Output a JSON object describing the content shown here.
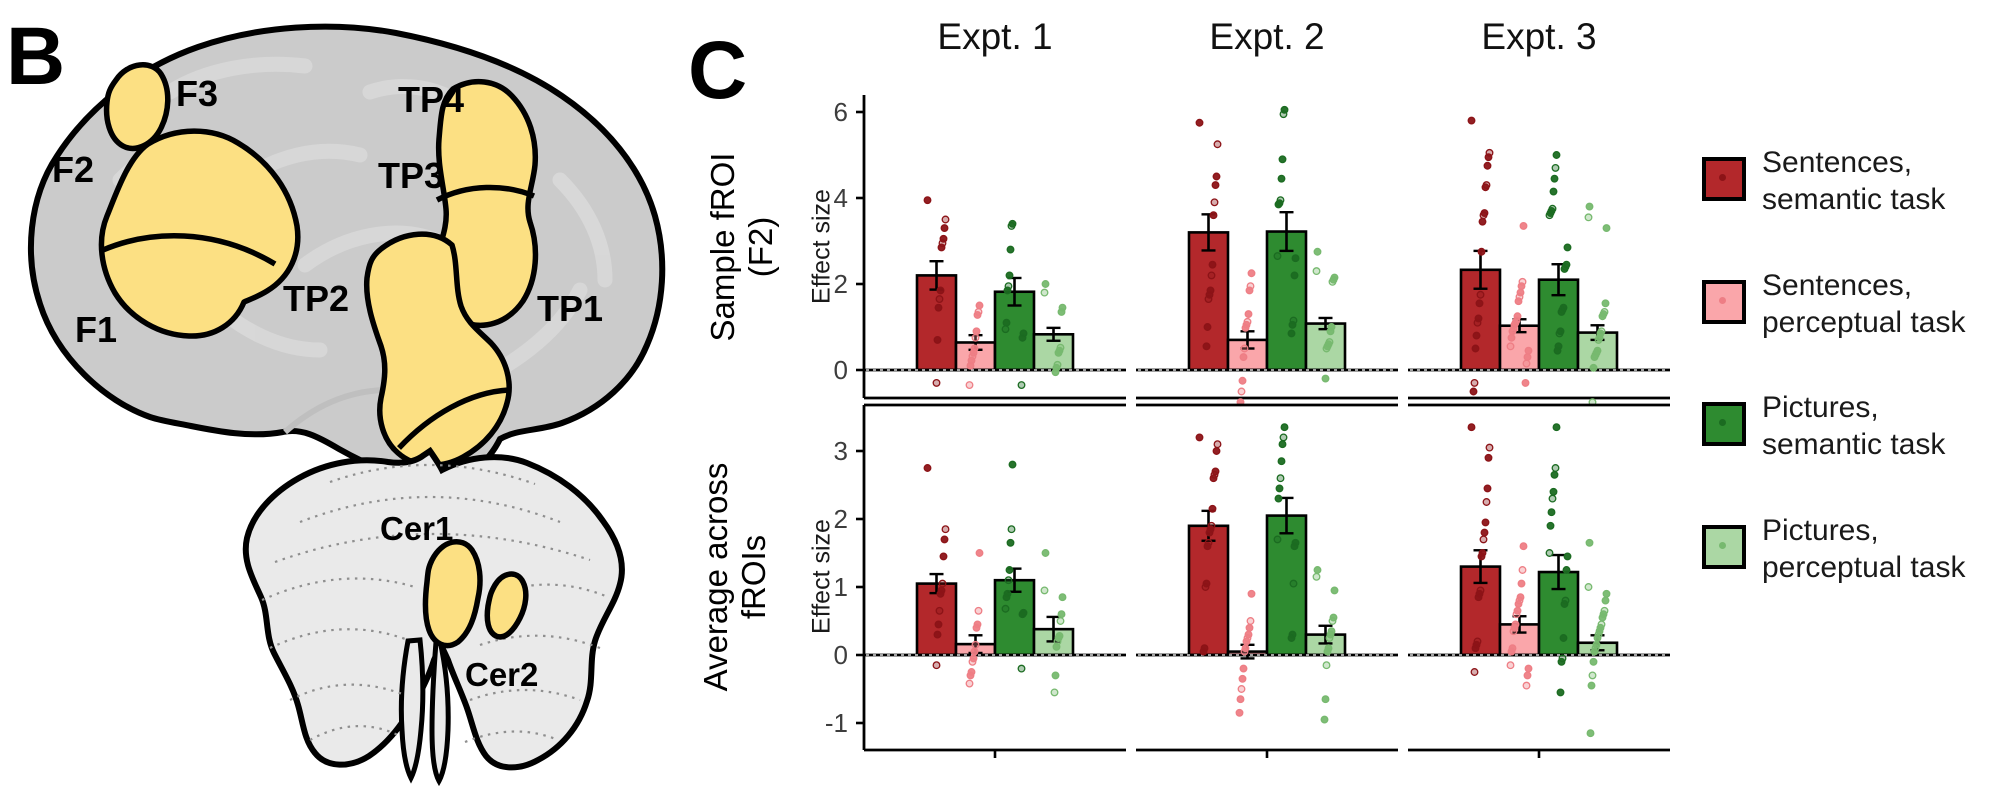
{
  "panel_b": {
    "label": "B",
    "colors": {
      "region_fill": "#FCE083",
      "cortex": "#CBCBCB",
      "cerebellum": "#EAEAEA"
    },
    "regions": [
      "F3",
      "TP4",
      "F2",
      "TP3",
      "TP2",
      "TP1",
      "F1"
    ],
    "cerebellum_regions": [
      "Cer1",
      "Cer2"
    ]
  },
  "panel_c": {
    "label": "C",
    "y_axis_label": "Effect size",
    "row_labels": [
      [
        "Sample fROI",
        "(F2)"
      ],
      [
        "Average across",
        "fROIs"
      ]
    ],
    "legend": [
      {
        "line1": "Sentences,",
        "line2": "semantic task",
        "key": "sentences-semantic",
        "color": "#B3282B",
        "point_color": "#8C1317"
      },
      {
        "line1": "Sentences,",
        "line2": "perceptual task",
        "key": "sentences-perceptual",
        "color": "#FAA6AA",
        "point_color": "#EE7E85"
      },
      {
        "line1": "Pictures,",
        "line2": "semantic task",
        "key": "pictures-semantic",
        "color": "#2E8B30",
        "point_color": "#1B6B21"
      },
      {
        "line1": "Pictures,",
        "line2": "perceptual task",
        "key": "pictures-perceptual",
        "color": "#ABD7A4",
        "point_color": "#77B96F"
      }
    ]
  },
  "chart_data": {
    "type": "bar",
    "columns": [
      "Expt. 1",
      "Expt. 2",
      "Expt. 3"
    ],
    "conditions": [
      "Sentences, semantic task",
      "Sentences, perceptual task",
      "Pictures, semantic task",
      "Pictures, perceptual task"
    ],
    "ylabel": "Effect size",
    "legend_position": "right",
    "rows": [
      {
        "label": "Sample fROI (F2)",
        "yticks": [
          0,
          2,
          4,
          6
        ],
        "ylim": [
          -0.65,
          6.4
        ],
        "panels": [
          {
            "values": [
              2.2,
              0.64,
              1.82,
              0.83
            ],
            "errors": [
              0.33,
              0.17,
              0.32,
              0.15
            ],
            "points": [
              [
                3.95,
                3.5,
                3.3,
                3.05,
                2.95,
                2.85,
                1.85,
                1.65,
                1.45,
                0.7,
                -0.3
              ],
              [
                1.5,
                1.35,
                1.28,
                0.9,
                0.75,
                0.5,
                0.4,
                0.32,
                0.22,
                0.1,
                -0.35
              ],
              [
                3.4,
                3.35,
                2.8,
                2.2,
                1.95,
                1.85,
                1.1,
                0.95,
                0.85,
                0.75,
                -0.35
              ],
              [
                2.0,
                1.8,
                1.45,
                1.35,
                0.52,
                0.45,
                0.4,
                0.12,
                0.05,
                -0.05
              ]
            ]
          },
          {
            "values": [
              3.2,
              0.7,
              3.22,
              1.08
            ],
            "errors": [
              0.42,
              0.2,
              0.45,
              0.13
            ],
            "points": [
              [
                5.75,
                5.25,
                4.5,
                4.3,
                3.9,
                3.6,
                2.45,
                2.2,
                1.85,
                1.75,
                1.65,
                1.0,
                0.55
              ],
              [
                2.25,
                1.95,
                1.85,
                1.3,
                1.12,
                1.05,
                0.98,
                0.5,
                0.3,
                -0.25,
                -0.5,
                -0.75
              ],
              [
                6.05,
                5.95,
                4.9,
                4.45,
                3.95,
                3.88,
                3.85,
                2.65,
                2.6,
                2.2,
                1.15,
                1.05,
                0.85
              ],
              [
                2.75,
                2.3,
                2.15,
                2.1,
                2.05,
                1.0,
                0.9,
                0.65,
                0.6,
                0.55,
                0.5,
                -0.2
              ]
            ]
          },
          {
            "values": [
              2.33,
              1.03,
              2.1,
              0.87
            ],
            "errors": [
              0.44,
              0.15,
              0.36,
              0.17
            ],
            "points": [
              [
                5.8,
                5.05,
                4.95,
                4.75,
                4.3,
                4.25,
                3.65,
                3.6,
                3.45,
                2.75,
                1.75,
                1.55,
                1.2,
                1.1,
                0.8,
                0.5,
                -0.3,
                -0.5
              ],
              [
                3.35,
                2.05,
                1.95,
                1.8,
                1.7,
                1.6,
                1.25,
                1.15,
                1.1,
                1.05,
                0.95,
                0.9,
                0.75,
                0.55,
                0.45,
                0.3,
                0.15,
                -0.3
              ],
              [
                5.0,
                4.7,
                4.45,
                4.15,
                3.75,
                3.7,
                3.65,
                3.6,
                2.85,
                2.45,
                2.4,
                2.35,
                1.45,
                1.4,
                1.35,
                0.9,
                0.85,
                0.55,
                0.45
              ],
              [
                3.8,
                3.55,
                3.3,
                1.55,
                1.35,
                1.3,
                1.25,
                0.9,
                0.85,
                0.75,
                0.7,
                0.45,
                0.4,
                0.35,
                0.3,
                0.05,
                -0.75
              ]
            ]
          }
        ]
      },
      {
        "label": "Average across fROIs",
        "yticks": [
          -1,
          0,
          1,
          2,
          3
        ],
        "ylim": [
          -1.4,
          3.68
        ],
        "panels": [
          {
            "values": [
              1.05,
              0.16,
              1.1,
              0.38
            ],
            "errors": [
              0.14,
              0.13,
              0.17,
              0.18
            ],
            "points": [
              [
                2.75,
                1.85,
                1.7,
                1.45,
                1.05,
                0.95,
                0.9,
                0.65,
                0.45,
                0.3,
                -0.15
              ],
              [
                1.5,
                0.65,
                0.45,
                0.4,
                0.15,
                0.05,
                -0.05,
                -0.1,
                -0.25,
                -0.3,
                -0.42
              ],
              [
                2.8,
                1.85,
                1.65,
                1.25,
                1.1,
                0.9,
                0.85,
                0.68,
                0.62,
                0.6,
                -0.2
              ],
              [
                1.5,
                0.95,
                0.85,
                0.6,
                0.5,
                0.28,
                0.25,
                0.2,
                0.12,
                -0.3,
                -0.55
              ]
            ]
          },
          {
            "values": [
              1.9,
              0.05,
              2.05,
              0.3
            ],
            "errors": [
              0.22,
              0.1,
              0.26,
              0.13
            ],
            "points": [
              [
                3.2,
                3.1,
                3.0,
                2.7,
                2.65,
                2.6,
                2.15,
                1.9,
                1.85,
                1.8,
                1.65,
                1.6,
                1.05,
                1.0,
                0.1,
                0.05
              ],
              [
                0.9,
                0.5,
                0.4,
                0.3,
                0.25,
                0.2,
                0.1,
                0.05,
                -0.2,
                -0.35,
                -0.5,
                -0.65,
                -0.85
              ],
              [
                3.35,
                3.2,
                3.1,
                2.85,
                2.6,
                2.45,
                2.3,
                1.7,
                1.65,
                1.6,
                1.05,
                0.3,
                0.25
              ],
              [
                1.25,
                1.15,
                0.95,
                0.55,
                0.5,
                0.35,
                0.3,
                0.25,
                0.1,
                0.05,
                -0.15,
                -0.65,
                -0.95
              ]
            ]
          },
          {
            "values": [
              1.3,
              0.45,
              1.22,
              0.18
            ],
            "errors": [
              0.24,
              0.12,
              0.25,
              0.11
            ],
            "points": [
              [
                3.35,
                3.05,
                2.9,
                2.45,
                2.25,
                1.95,
                1.8,
                1.7,
                1.5,
                1.45,
                0.95,
                0.9,
                0.85,
                0.2,
                0.15,
                0.1,
                -0.25
              ],
              [
                1.6,
                1.25,
                1.05,
                0.85,
                0.8,
                0.75,
                0.65,
                0.6,
                0.45,
                0.4,
                0.35,
                0.1,
                0.05,
                -0.15,
                -0.2,
                -0.3,
                -0.45
              ],
              [
                3.35,
                2.75,
                2.65,
                2.4,
                2.3,
                2.1,
                1.9,
                1.5,
                1.45,
                1.25,
                0.8,
                0.75,
                0.25,
                -0.05,
                -0.1,
                -0.55
              ],
              [
                1.65,
                1.0,
                0.9,
                0.8,
                0.65,
                0.6,
                0.55,
                0.45,
                0.4,
                0.35,
                0.3,
                0.25,
                0.15,
                0.1,
                0.05,
                -0.1,
                -0.3,
                -0.45,
                -1.15
              ]
            ]
          }
        ]
      }
    ]
  }
}
